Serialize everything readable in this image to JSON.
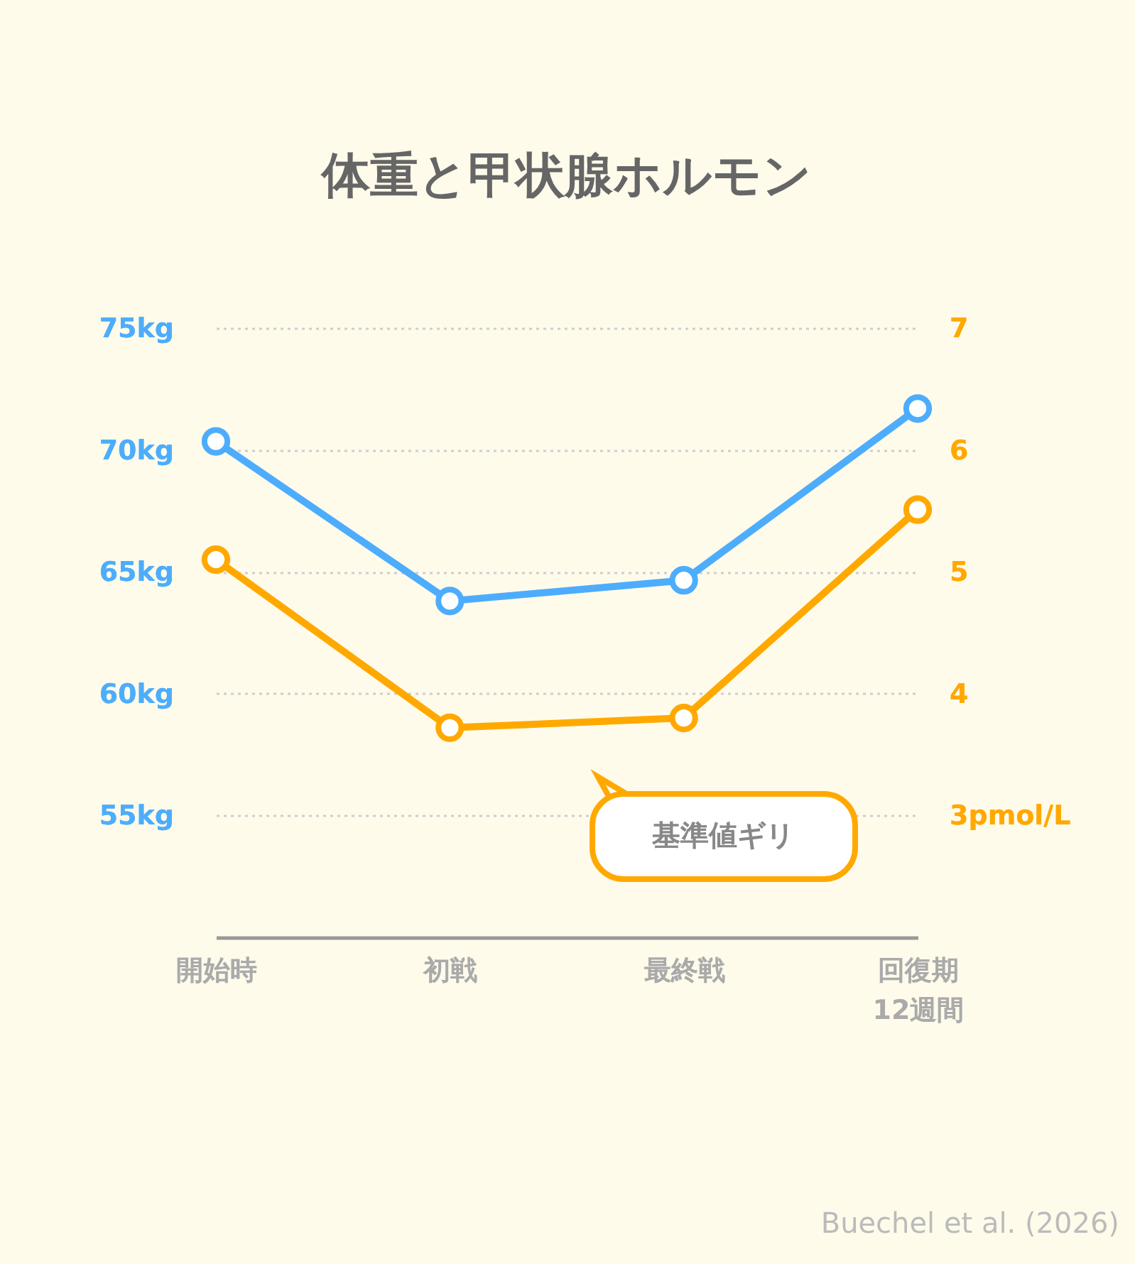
{
  "chart_data": {
    "type": "line",
    "title": "体重と甲状腺ホルモン",
    "categories": [
      "開始時",
      "初戦",
      "最終戦",
      "回復期\n12週間"
    ],
    "series": [
      {
        "color": "#4dadfc",
        "values": [
          70.35,
          63.8,
          64.65,
          71.7
        ]
      },
      {
        "color": "#ffa900",
        "values": [
          5.1,
          3.72,
          3.8,
          5.51
        ],
        "axis": "y2"
      }
    ],
    "ylim": [
      50,
      75
    ],
    "yticks": [
      {
        "value": 55,
        "label": "55kg"
      },
      {
        "value": 60,
        "label": "60kg"
      },
      {
        "value": 65,
        "label": "65kg"
      },
      {
        "value": 70,
        "label": "70kg"
      },
      {
        "value": 75,
        "label": "75kg"
      }
    ],
    "y2lim": [
      2,
      7
    ],
    "y2ticks": [
      {
        "value": 3,
        "label": "3pmol/L"
      },
      4,
      5,
      6,
      7
    ],
    "grid": "y",
    "marker": "circle",
    "line_style": "solid",
    "legend": false,
    "annotations": [
      "基準値ギリ",
      "Buechel et al. (2026)"
    ]
  }
}
